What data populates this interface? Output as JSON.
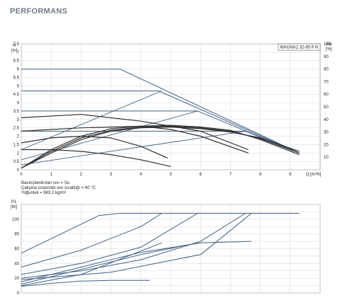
{
  "page": {
    "title": "PERFORMANS"
  },
  "chart_data": [
    {
      "type": "line",
      "title": "MAGNA1 32-60 F N",
      "ylabel": "H",
      "yunit": "[m]",
      "xlabel": "Q",
      "xunit": "[m³/h]",
      "ylabel_right": "eta",
      "yunit_right": "[%]",
      "xlim": [
        0,
        10
      ],
      "ylim": [
        0,
        7.5
      ],
      "ylim_right": [
        0,
        100
      ],
      "xticks": [
        0,
        1,
        2,
        3,
        4,
        5,
        6,
        7,
        8,
        9
      ],
      "yticks": [
        0.0,
        0.5,
        1.0,
        1.5,
        2.0,
        2.5,
        3.0,
        3.5,
        4.0,
        4.5,
        5.0,
        5.5,
        6.0,
        6.5,
        7.0,
        7.5
      ],
      "yticks_right": [
        10,
        20,
        30,
        40,
        50,
        60,
        70,
        80,
        90,
        100
      ],
      "grid": true,
      "notes": [
        "Basınçlandırılan sıvı = Su",
        "Çalışma sırasında sıvı sıcaklığı = 60 °C",
        "Yoğunluk = 983.2 kg/m³"
      ],
      "series": [
        {
          "kind": "head",
          "x": [
            0,
            3.3,
            9.3
          ],
          "y": [
            6.0,
            6.0,
            1.0
          ]
        },
        {
          "kind": "head",
          "x": [
            0,
            4.6,
            9.3
          ],
          "y": [
            4.7,
            4.7,
            1.0
          ]
        },
        {
          "kind": "head",
          "x": [
            0,
            5.9,
            9.3
          ],
          "y": [
            3.5,
            3.5,
            1.0
          ]
        },
        {
          "kind": "head",
          "x": [
            0,
            7.5,
            9.3
          ],
          "y": [
            2.3,
            2.3,
            1.0
          ]
        },
        {
          "kind": "system",
          "x": [
            0,
            4.7
          ],
          "y": [
            1.2,
            4.7
          ]
        },
        {
          "kind": "system",
          "x": [
            0,
            5.9
          ],
          "y": [
            0.6,
            3.5
          ]
        },
        {
          "kind": "system",
          "x": [
            0,
            7.5
          ],
          "y": [
            0.3,
            2.3
          ]
        },
        {
          "kind": "efficiency",
          "x": [
            0,
            1,
            2,
            3,
            4,
            5
          ],
          "y": [
            1.2,
            1.2,
            1.1,
            0.9,
            0.6,
            0.2
          ]
        },
        {
          "kind": "efficiency",
          "x": [
            0,
            1,
            2,
            3,
            4,
            4.9
          ],
          "y": [
            1.6,
            1.9,
            2.0,
            1.9,
            1.4,
            0.7
          ]
        },
        {
          "kind": "efficiency",
          "x": [
            0,
            2,
            4,
            5,
            6,
            7.6
          ],
          "y": [
            2.3,
            2.5,
            2.6,
            2.4,
            2.0,
            1.0
          ]
        },
        {
          "kind": "efficiency",
          "x": [
            0,
            2,
            4,
            6,
            7.6
          ],
          "y": [
            3.1,
            3.3,
            2.9,
            2.3,
            1.2
          ]
        },
        {
          "kind": "efficiency",
          "x": [
            0,
            1,
            2,
            3,
            4,
            5,
            6,
            7,
            8,
            9.3
          ],
          "y": [
            0.1,
            1.2,
            2.0,
            2.45,
            2.6,
            2.65,
            2.55,
            2.35,
            1.8,
            0.9
          ]
        },
        {
          "kind": "efficiency",
          "x": [
            0,
            1,
            2,
            3,
            4,
            5,
            6,
            7,
            8,
            9.3
          ],
          "y": [
            0.1,
            1.1,
            1.9,
            2.35,
            2.55,
            2.6,
            2.5,
            2.3,
            1.85,
            1.0
          ]
        },
        {
          "kind": "efficiency",
          "x": [
            0,
            1,
            2,
            3,
            4,
            5,
            6,
            7,
            8,
            9.3
          ],
          "y": [
            0.1,
            1.0,
            1.8,
            2.3,
            2.5,
            2.55,
            2.45,
            2.25,
            1.9,
            1.1
          ]
        }
      ]
    },
    {
      "type": "line",
      "ylabel": "P1",
      "yunit": "[W]",
      "xlim": [
        0,
        10
      ],
      "ylim": [
        0,
        120
      ],
      "yticks": [
        0,
        20,
        40,
        60,
        80,
        100
      ],
      "grid": true,
      "series": [
        {
          "kind": "power",
          "x": [
            0,
            2.6,
            3.3,
            9.3
          ],
          "y": [
            54,
            105,
            108,
            108
          ]
        },
        {
          "kind": "power",
          "x": [
            0,
            2,
            4,
            4.7,
            9.3
          ],
          "y": [
            35,
            58,
            90,
            108,
            108
          ]
        },
        {
          "kind": "power",
          "x": [
            0,
            2,
            4,
            5.9,
            9.3
          ],
          "y": [
            25,
            40,
            62,
            108,
            108
          ]
        },
        {
          "kind": "power",
          "x": [
            0,
            2,
            4,
            6,
            7.5,
            9.3
          ],
          "y": [
            20,
            30,
            45,
            70,
            108,
            108
          ]
        },
        {
          "kind": "power",
          "x": [
            0,
            3,
            6,
            7.7,
            9.3
          ],
          "y": [
            18,
            28,
            52,
            108,
            108
          ]
        },
        {
          "kind": "power",
          "x": [
            0,
            2,
            4,
            6,
            7.7
          ],
          "y": [
            15,
            35,
            55,
            68,
            70
          ]
        },
        {
          "kind": "power",
          "x": [
            0,
            2,
            4,
            5.9
          ],
          "y": [
            12,
            32,
            52,
            68
          ]
        },
        {
          "kind": "power",
          "x": [
            0,
            2,
            4.7
          ],
          "y": [
            10,
            25,
            68
          ]
        },
        {
          "kind": "power",
          "x": [
            0,
            1,
            2,
            3,
            4.3
          ],
          "y": [
            9,
            13,
            16,
            17,
            17
          ]
        }
      ]
    }
  ]
}
